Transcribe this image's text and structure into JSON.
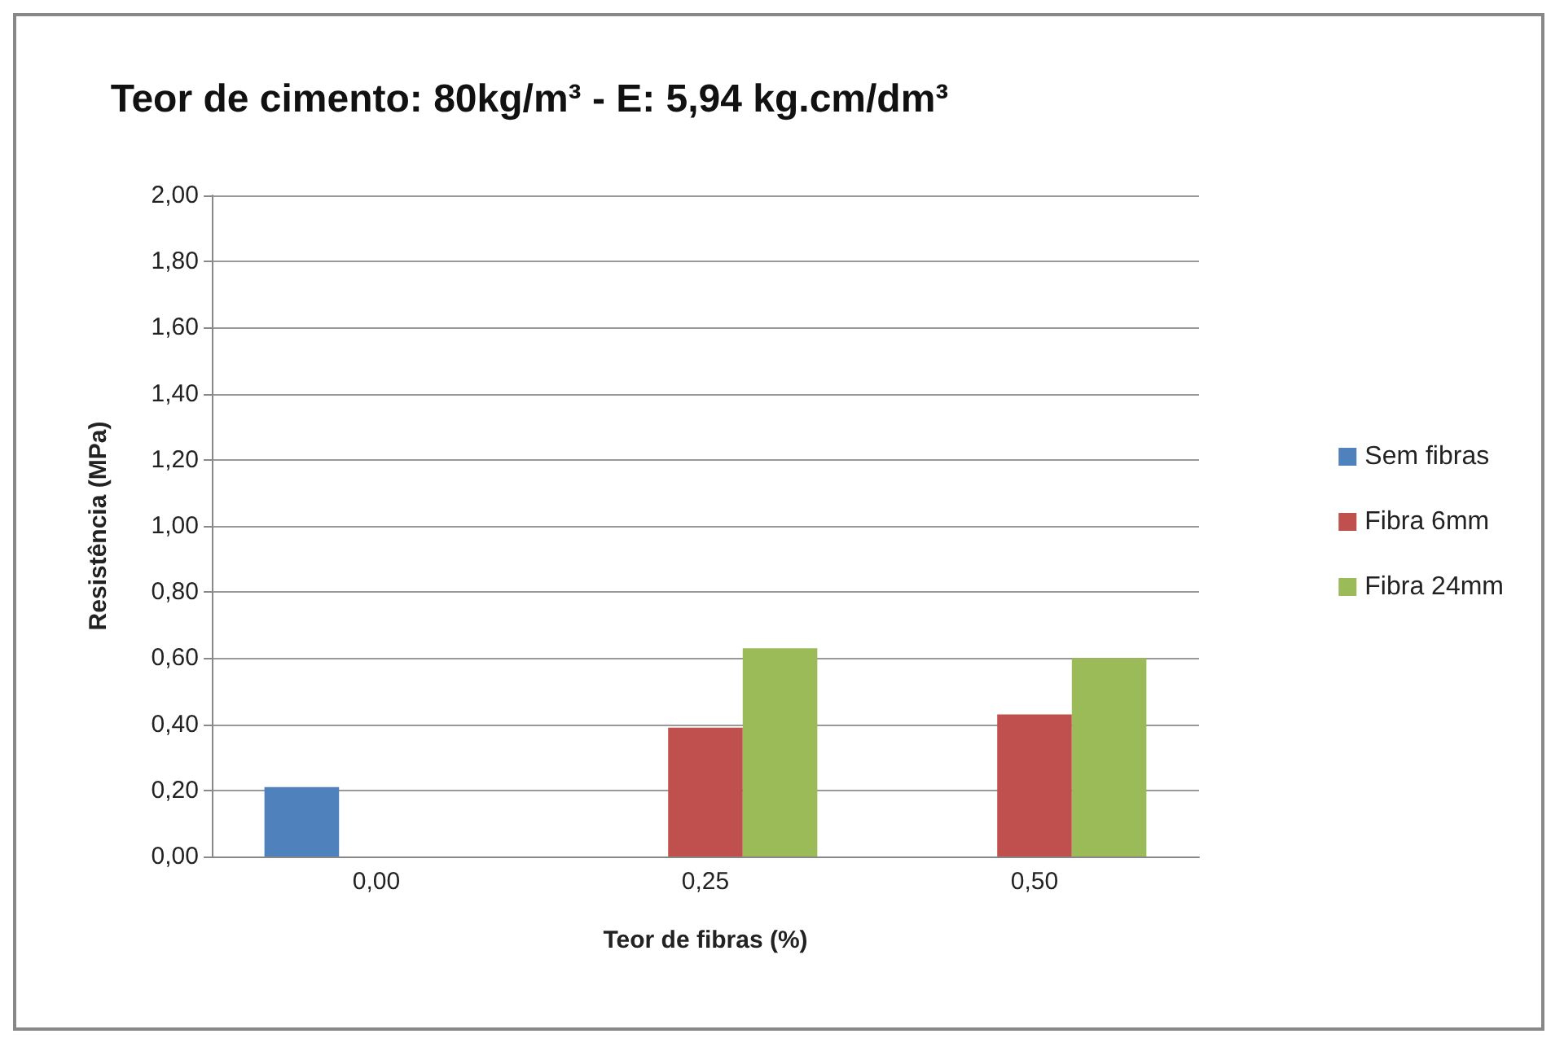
{
  "chart_data": {
    "type": "bar",
    "title": "Teor de cimento: 80kg/m³ - E: 5,94 kg.cm/dm³",
    "xlabel": "Teor de fibras (%)",
    "ylabel": "Resistência (MPa)",
    "categories": [
      "0,00",
      "0,25",
      "0,50"
    ],
    "series": [
      {
        "name": "Sem fibras",
        "color": "#4f81bd",
        "values": [
          0.21,
          null,
          null
        ]
      },
      {
        "name": "Fibra 6mm",
        "color": "#c0504d",
        "values": [
          null,
          0.39,
          0.43
        ]
      },
      {
        "name": "Fibra 24mm",
        "color": "#9bbb59",
        "values": [
          null,
          0.63,
          0.6
        ]
      }
    ],
    "ylim": [
      0,
      2
    ],
    "yticks": [
      {
        "value": 0,
        "label": "0,00"
      },
      {
        "value": 0.2,
        "label": "0,20"
      },
      {
        "value": 0.4,
        "label": "0,40"
      },
      {
        "value": 0.6,
        "label": "0,60"
      },
      {
        "value": 0.8,
        "label": "0,80"
      },
      {
        "value": 1,
        "label": "1,00"
      },
      {
        "value": 1.2,
        "label": "1,20"
      },
      {
        "value": 1.4,
        "label": "1,40"
      },
      {
        "value": 1.6,
        "label": "1,60"
      },
      {
        "value": 1.8,
        "label": "1,80"
      },
      {
        "value": 2,
        "label": "2,00"
      }
    ],
    "grid": "y",
    "legend": "right"
  }
}
